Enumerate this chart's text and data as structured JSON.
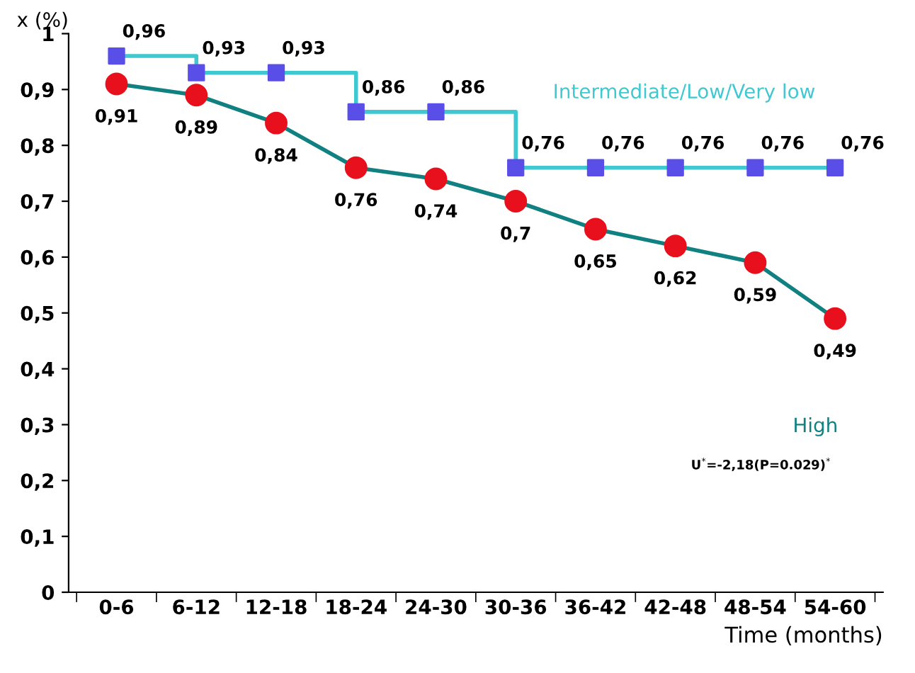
{
  "chart_data": {
    "type": "line",
    "xlabel": "Time (months)",
    "ylabel": "x (%)",
    "categories": [
      "0-6",
      "6-12",
      "12-18",
      "18-24",
      "24-30",
      "30-36",
      "36-42",
      "42-48",
      "48-54",
      "54-60"
    ],
    "series": [
      {
        "name": "Intermediate/Low/Very low",
        "color": "#40c8d0",
        "colors": [
          "#5a4ee8",
          "#5a4ee8",
          "#5a4ee8",
          "#5a4ee8",
          "#5a4ee8",
          "#5a4ee8",
          "#5a4ee8",
          "#5a4ee8",
          "#5a4ee8",
          "#5a4ee8"
        ],
        "marker": "square",
        "type": "step",
        "values": [
          0.96,
          0.93,
          0.93,
          0.86,
          0.86,
          0.76,
          0.76,
          0.76,
          0.76,
          0.76
        ],
        "value_labels": [
          "0,96",
          "0,93",
          "0,93",
          "0,86",
          "0,86",
          "0,76",
          "0,76",
          "0,76",
          "0,76",
          "0,76"
        ]
      },
      {
        "name": "High",
        "color": "#108080",
        "colors": [
          "#e8101c",
          "#e8101c",
          "#e8101c",
          "#e8101c",
          "#e8101c",
          "#e8101c",
          "#e8101c",
          "#e8101c",
          "#e8101c",
          "#e8101c"
        ],
        "marker": "circle",
        "values": [
          0.91,
          0.89,
          0.84,
          0.76,
          0.74,
          0.7,
          0.65,
          0.62,
          0.59,
          0.49
        ],
        "value_labels": [
          "0,91",
          "0,89",
          "0,84",
          "0,76",
          "0,74",
          "0,7",
          "0,65",
          "0,62",
          "0,59",
          "0,49"
        ]
      }
    ],
    "ylim": [
      0,
      1
    ],
    "yticks": [
      0,
      {
        "value": 0.1,
        "label": "0,1"
      },
      {
        "value": 0.2,
        "label": "0,2"
      },
      {
        "value": 0.3,
        "label": "0,3"
      },
      {
        "value": 0.4,
        "label": "0,4"
      },
      {
        "value": 0.5,
        "label": "0,5"
      },
      {
        "value": 0.6,
        "label": "0,6"
      },
      {
        "value": 0.7,
        "label": "0,7"
      },
      {
        "value": 0.8,
        "label": "0,8"
      },
      {
        "value": 0.9,
        "label": "0,9"
      },
      1
    ],
    "annotations": [
      "U$^{*}$=-2,18(P=0.029)$^{*}$"
    ],
    "grid": false,
    "legend": false
  }
}
